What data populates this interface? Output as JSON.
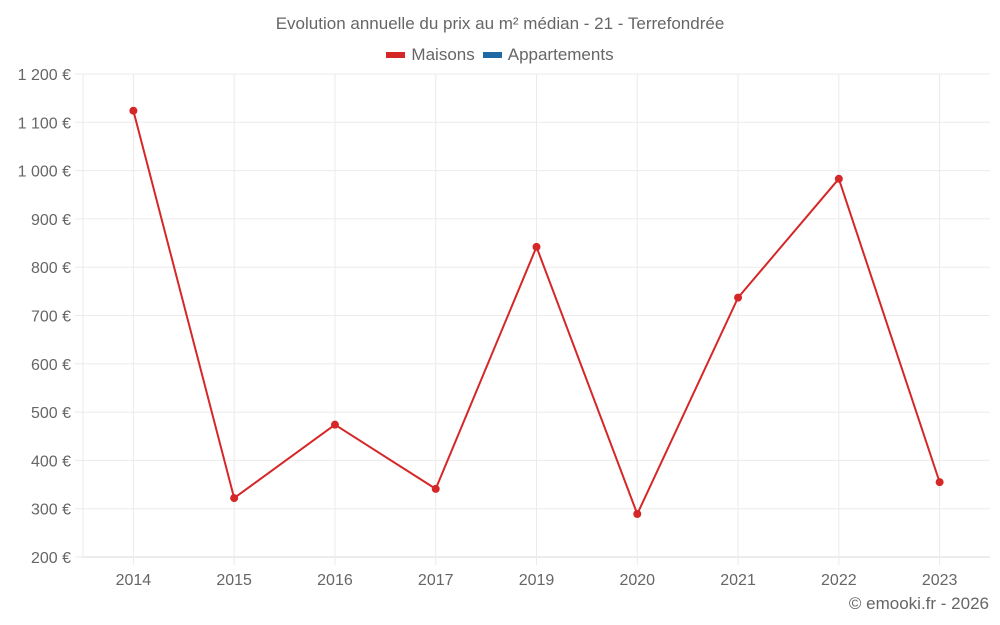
{
  "chart_data": {
    "type": "line",
    "title": "Evolution annuelle du prix au m² médian - 21 - Terrefondrée",
    "xlabel": "",
    "ylabel": "",
    "categories": [
      "2014",
      "2015",
      "2016",
      "2017",
      "2019",
      "2020",
      "2021",
      "2022",
      "2023"
    ],
    "series": [
      {
        "name": "Maisons",
        "color": "#d62728",
        "values": [
          1124,
          322,
          474,
          341,
          842,
          289,
          737,
          983,
          355
        ]
      },
      {
        "name": "Appartements",
        "color": "#1f6aa5",
        "values": []
      }
    ],
    "ylim": [
      200,
      1200
    ],
    "yticks": [
      200,
      300,
      400,
      500,
      600,
      700,
      800,
      900,
      1000,
      1100,
      1200
    ],
    "ytick_labels": [
      "200 €",
      "300 €",
      "400 €",
      "500 €",
      "600 €",
      "700 €",
      "800 €",
      "900 €",
      "1 000 €",
      "1 100 €",
      "1 200 €"
    ],
    "grid": true,
    "legend_position": "top"
  },
  "header": {
    "title": "Evolution annuelle du prix au m² médian - 21 - Terrefondrée"
  },
  "legend": {
    "items": [
      {
        "label": "Maisons",
        "color": "#d62728"
      },
      {
        "label": "Appartements",
        "color": "#1f6aa5"
      }
    ]
  },
  "footer": {
    "credit": "© emooki.fr - 2026"
  },
  "colors": {
    "grid": "#ebebeb",
    "axis": "#d9d9d9",
    "text": "#666666"
  }
}
